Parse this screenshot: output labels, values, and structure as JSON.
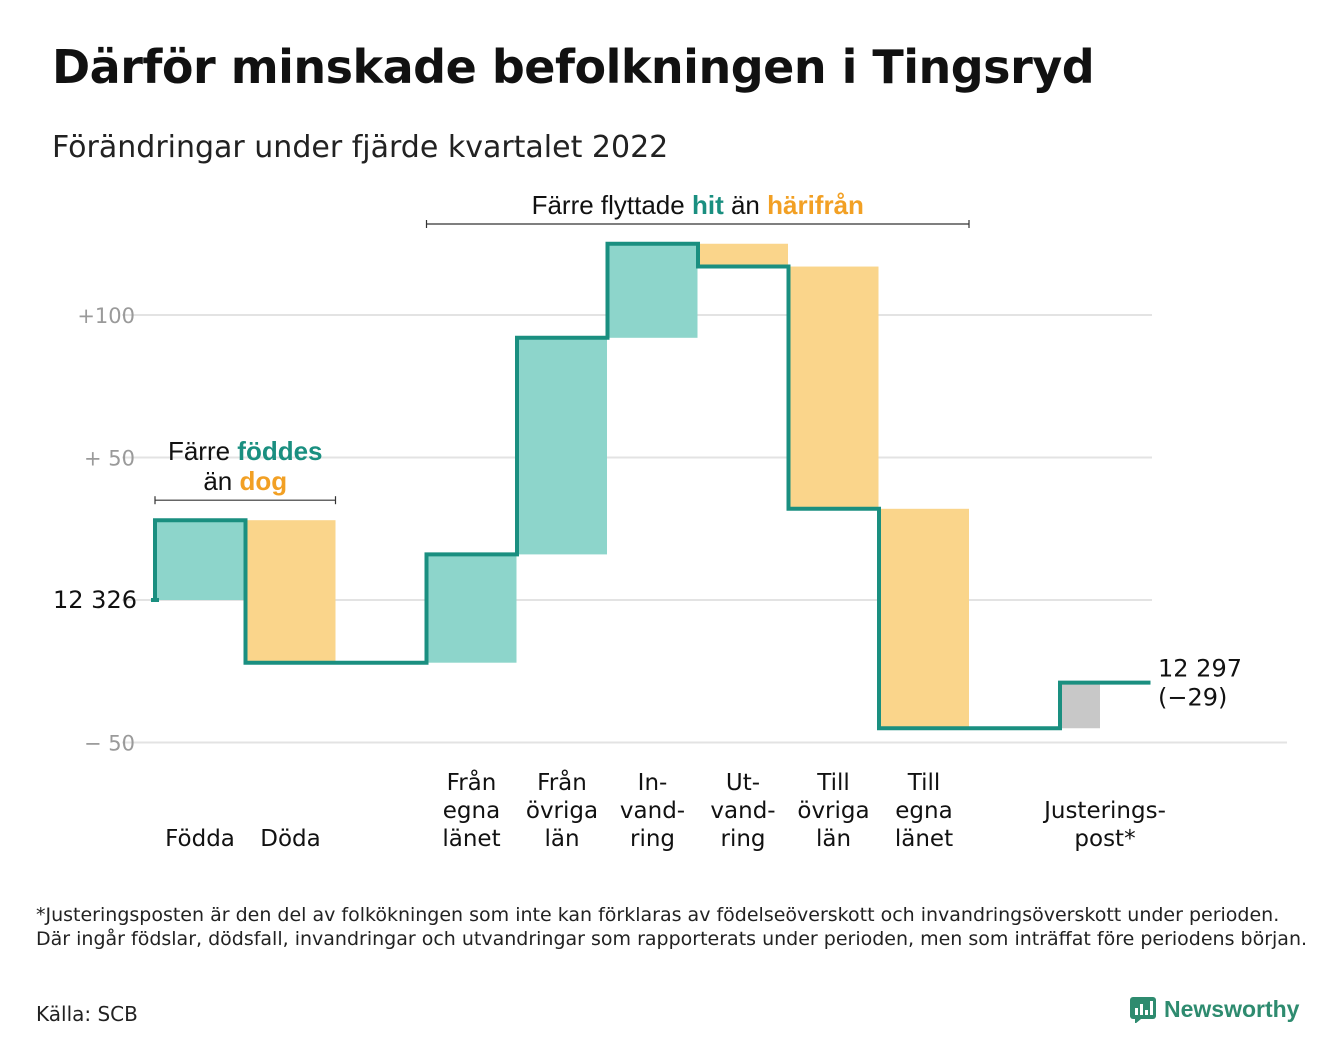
{
  "header": {
    "title": "Därför minskade befolkningen i Tingsryd",
    "subtitle": "Förändringar under fjärde kvartalet 2022"
  },
  "colors": {
    "increase": "#8dd5cb",
    "decrease": "#fad58b",
    "adjustment": "#c8c8c8",
    "line": "#1a8f80",
    "grid": "#e3e3e3",
    "highlight_teal": "#1a8f80",
    "highlight_orange": "#f2a024"
  },
  "chart_data": {
    "type": "waterfall",
    "start_value": 12326,
    "start_label": "12 326",
    "end_value": 12297,
    "end_label": "12 297",
    "end_change_label": "(−29)",
    "y_ticks": [
      {
        "value": 100,
        "label": "+100"
      },
      {
        "value": 50,
        "label": "+ 50"
      },
      {
        "value": 0,
        "label": ""
      },
      {
        "value": -50,
        "label": "− 50"
      }
    ],
    "ylim": [
      -55,
      128
    ],
    "steps": [
      {
        "label_lines": [
          "Födda"
        ],
        "value": 28,
        "kind": "increase"
      },
      {
        "label_lines": [
          "Döda"
        ],
        "value": -50,
        "kind": "decrease"
      },
      {
        "label_lines": [],
        "value": 0,
        "kind": "gap"
      },
      {
        "label_lines": [
          "Från",
          "egna",
          "länet"
        ],
        "value": 38,
        "kind": "increase"
      },
      {
        "label_lines": [
          "Från",
          "övriga",
          "län"
        ],
        "value": 76,
        "kind": "increase"
      },
      {
        "label_lines": [
          "In-",
          "vand-",
          "ring"
        ],
        "value": 33,
        "kind": "increase"
      },
      {
        "label_lines": [
          "Ut-",
          "vand-",
          "ring"
        ],
        "value": -8,
        "kind": "decrease"
      },
      {
        "label_lines": [
          "Till",
          "övriga",
          "län"
        ],
        "value": -85,
        "kind": "decrease"
      },
      {
        "label_lines": [
          "Till",
          "egna",
          "länet"
        ],
        "value": -77,
        "kind": "decrease"
      },
      {
        "label_lines": [],
        "value": 0,
        "kind": "gap"
      },
      {
        "label_lines": [
          "Justerings-",
          "post*"
        ],
        "value": 16,
        "kind": "adjustment"
      }
    ],
    "annotations": [
      {
        "from_step": 0,
        "to_step": 1,
        "lines": [
          [
            {
              "text": "Färre ",
              "style": "normal"
            },
            {
              "text": "föddes",
              "style": "teal"
            }
          ],
          [
            {
              "text": "än ",
              "style": "normal"
            },
            {
              "text": "dog",
              "style": "orange"
            }
          ]
        ]
      },
      {
        "from_step": 3,
        "to_step": 8,
        "lines": [
          [
            {
              "text": "Färre flyttade ",
              "style": "normal"
            },
            {
              "text": "hit",
              "style": "teal"
            },
            {
              "text": " än ",
              "style": "normal"
            },
            {
              "text": "härifrån",
              "style": "orange"
            }
          ]
        ]
      }
    ]
  },
  "footnote": "*Justeringsposten är den del av folkökningen som inte kan förklaras av födelseöverskott och invandringsöverskott under perioden. Där ingår födslar, dödsfall, invandringar och utvandringar som rapporterats under perioden, men som inträffat före periodens början.",
  "source": "Källa: SCB",
  "brand": {
    "name": "Newsworthy",
    "icon": "newsworthy-logo-icon"
  }
}
